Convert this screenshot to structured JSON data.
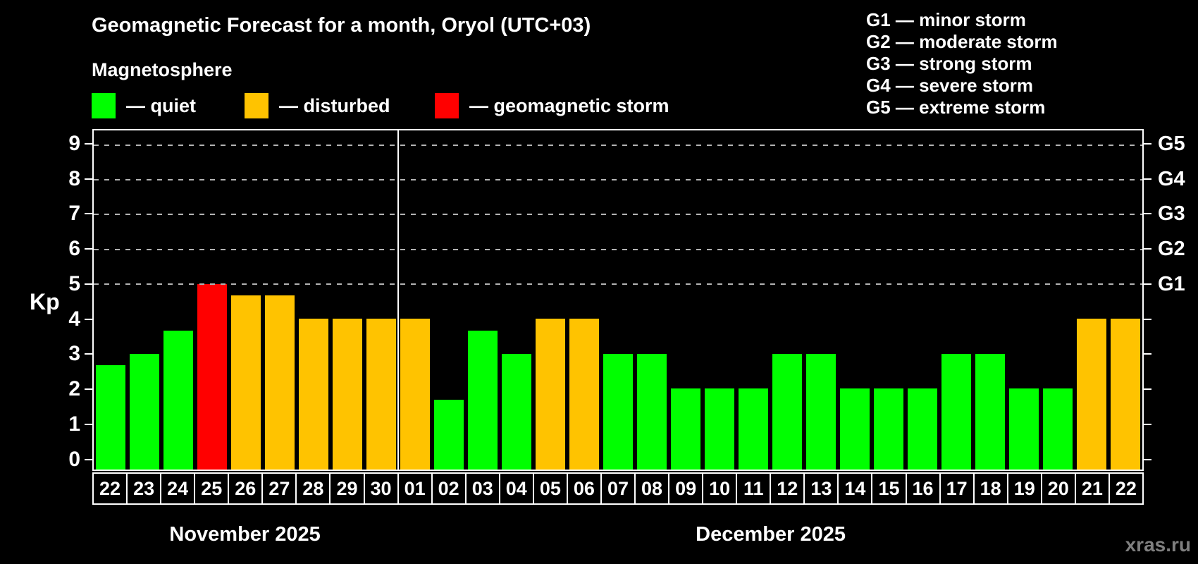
{
  "header": {
    "title": "Geomagnetic Forecast for a month, Oryol (UTC+03)",
    "subtitle": "Magnetosphere"
  },
  "legend": {
    "items": [
      {
        "state": "quiet",
        "label": "— quiet",
        "color": "#00ff00"
      },
      {
        "state": "disturbed",
        "label": "— disturbed",
        "color": "#ffc300"
      },
      {
        "state": "storm",
        "label": "— geomagnetic storm",
        "color": "#ff0000"
      }
    ]
  },
  "g_scale_legend": [
    "G1 — minor storm",
    "G2 — moderate storm",
    "G3 — strong storm",
    "G4 — severe storm",
    "G5 — extreme storm"
  ],
  "axes": {
    "y_title": "Kp",
    "y_ticks": [
      0,
      1,
      2,
      3,
      4,
      5,
      6,
      7,
      8,
      9
    ],
    "grid_kp": [
      5,
      6,
      7,
      8,
      9
    ],
    "right_labels": [
      {
        "label": "G1",
        "kp": 5
      },
      {
        "label": "G2",
        "kp": 6
      },
      {
        "label": "G3",
        "kp": 7
      },
      {
        "label": "G4",
        "kp": 8
      },
      {
        "label": "G5",
        "kp": 9
      }
    ]
  },
  "watermark": "xras.ru",
  "chart_data": {
    "type": "bar",
    "title": "Geomagnetic Forecast for a month, Oryol (UTC+03)",
    "xlabel": "",
    "ylabel": "Kp",
    "ylim": [
      0,
      9
    ],
    "grid": "dashed horizontal lines at Kp 5..9 (G1..G5)",
    "legend_position": "top-left",
    "categories": [
      "22",
      "23",
      "24",
      "25",
      "26",
      "27",
      "28",
      "29",
      "30",
      "01",
      "02",
      "03",
      "04",
      "05",
      "06",
      "07",
      "08",
      "09",
      "10",
      "11",
      "12",
      "13",
      "14",
      "15",
      "16",
      "17",
      "18",
      "19",
      "20",
      "21",
      "22"
    ],
    "values": [
      2.67,
      3,
      3.67,
      5,
      4.67,
      4.67,
      4,
      4,
      4,
      4,
      1.67,
      3.67,
      3,
      4,
      4,
      3,
      3,
      2,
      2,
      2,
      3,
      3,
      2,
      2,
      2,
      3,
      3,
      2,
      2,
      4,
      4
    ],
    "states": [
      "quiet",
      "quiet",
      "quiet",
      "storm",
      "disturbed",
      "disturbed",
      "disturbed",
      "disturbed",
      "disturbed",
      "disturbed",
      "quiet",
      "quiet",
      "quiet",
      "disturbed",
      "disturbed",
      "quiet",
      "quiet",
      "quiet",
      "quiet",
      "quiet",
      "quiet",
      "quiet",
      "quiet",
      "quiet",
      "quiet",
      "quiet",
      "quiet",
      "quiet",
      "quiet",
      "disturbed",
      "disturbed"
    ],
    "colors": {
      "quiet": "#00ff00",
      "disturbed": "#ffc300",
      "storm": "#ff0000"
    },
    "months": [
      {
        "label": "November 2025",
        "days": 9
      },
      {
        "label": "December 2025",
        "days": 22
      }
    ]
  }
}
